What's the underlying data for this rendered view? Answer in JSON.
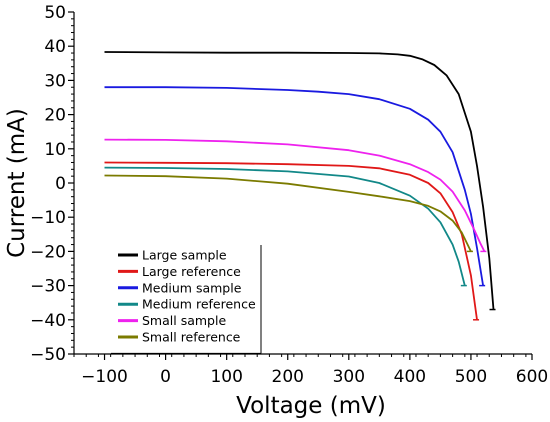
{
  "chart_data": {
    "type": "line",
    "xlabel": "Voltage (mV)",
    "ylabel": "Current (mA)",
    "xlim": [
      -150,
      600
    ],
    "ylim": [
      -50,
      50
    ],
    "x_ticks": [
      -100,
      0,
      100,
      200,
      300,
      400,
      500,
      600
    ],
    "x_tick_labels": [
      "−100",
      "0",
      "100",
      "200",
      "300",
      "400",
      "500",
      "600"
    ],
    "y_ticks": [
      -50,
      -40,
      -30,
      -20,
      -10,
      0,
      10,
      20,
      30,
      40,
      50
    ],
    "y_tick_labels": [
      "−50",
      "−40",
      "−30",
      "−20",
      "−10",
      "0",
      "10",
      "20",
      "30",
      "40",
      "50"
    ],
    "grid": false,
    "legend_position": "bottom-left",
    "series": [
      {
        "name": "Large sample",
        "color": "#000000",
        "x": [
          -100,
          0,
          100,
          200,
          300,
          350,
          380,
          400,
          420,
          440,
          460,
          480,
          500,
          510,
          520,
          530,
          537
        ],
        "y": [
          38.3,
          38.2,
          38.1,
          38.1,
          38.0,
          37.9,
          37.6,
          37.2,
          36.2,
          34.5,
          31.5,
          26.0,
          15.0,
          5.0,
          -7.0,
          -22.0,
          -37.0
        ]
      },
      {
        "name": "Large reference",
        "color": "#e01818",
        "x": [
          -100,
          0,
          100,
          200,
          300,
          350,
          400,
          430,
          450,
          470,
          485,
          500,
          510
        ],
        "y": [
          6.0,
          5.9,
          5.8,
          5.5,
          5.0,
          4.3,
          2.4,
          0.0,
          -3.0,
          -8.5,
          -15.0,
          -27.0,
          -40.0
        ]
      },
      {
        "name": "Medium sample",
        "color": "#1a1ae0",
        "x": [
          -100,
          0,
          100,
          200,
          250,
          300,
          350,
          400,
          430,
          450,
          470,
          490,
          500,
          510,
          520
        ],
        "y": [
          28.0,
          28.0,
          27.8,
          27.2,
          26.7,
          26.0,
          24.5,
          21.7,
          18.5,
          15.0,
          9.0,
          -2.0,
          -9.0,
          -19.0,
          -30.0
        ]
      },
      {
        "name": "Medium reference",
        "color": "#128888",
        "x": [
          -100,
          0,
          100,
          200,
          300,
          350,
          400,
          430,
          450,
          470,
          480,
          490
        ],
        "y": [
          4.5,
          4.4,
          4.1,
          3.4,
          1.9,
          0.0,
          -3.7,
          -7.5,
          -11.5,
          -18.0,
          -23.0,
          -30.0
        ]
      },
      {
        "name": "Small sample",
        "color": "#ee22ee",
        "x": [
          -100,
          0,
          100,
          200,
          300,
          350,
          400,
          430,
          450,
          470,
          490,
          505,
          515,
          522
        ],
        "y": [
          12.7,
          12.6,
          12.2,
          11.3,
          9.6,
          8.0,
          5.5,
          3.2,
          1.0,
          -2.5,
          -8.0,
          -13.5,
          -17.5,
          -20.0
        ]
      },
      {
        "name": "Small reference",
        "color": "#7b7b00",
        "x": [
          -100,
          0,
          100,
          200,
          300,
          350,
          400,
          430,
          450,
          470,
          485,
          500
        ],
        "y": [
          2.2,
          2.0,
          1.3,
          -0.2,
          -2.6,
          -3.9,
          -5.3,
          -6.7,
          -8.3,
          -11.0,
          -14.5,
          -20.0
        ]
      }
    ]
  }
}
